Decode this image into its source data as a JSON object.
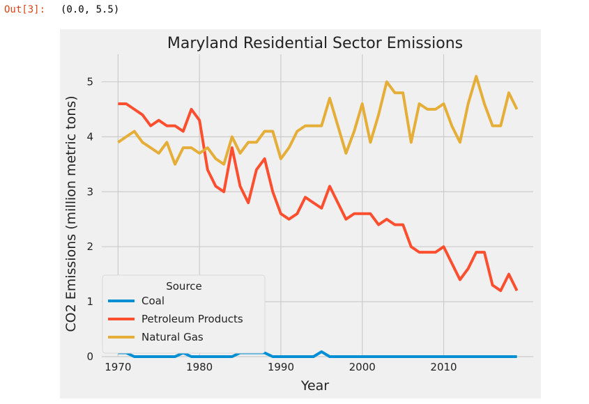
{
  "cell": {
    "prompt": "Out[3]:",
    "value": "(0.0, 5.5)"
  },
  "chart_data": {
    "type": "line",
    "title": "Maryland Residential Sector Emissions",
    "xlabel": "Year",
    "ylabel": "CO2 Emissions (million metric tons)",
    "xlim": [
      1968,
      2021
    ],
    "ylim": [
      0,
      5.5
    ],
    "xticks": [
      1970,
      1980,
      1990,
      2000,
      2010
    ],
    "yticks": [
      0,
      1,
      2,
      3,
      4,
      5
    ],
    "grid": true,
    "legend": {
      "title": "Source",
      "placement": "lower-left"
    },
    "x": [
      1970,
      1971,
      1972,
      1973,
      1974,
      1975,
      1976,
      1977,
      1978,
      1979,
      1980,
      1981,
      1982,
      1983,
      1984,
      1985,
      1986,
      1987,
      1988,
      1989,
      1990,
      1991,
      1992,
      1993,
      1994,
      1995,
      1996,
      1997,
      1998,
      1999,
      2000,
      2001,
      2002,
      2003,
      2004,
      2005,
      2006,
      2007,
      2008,
      2009,
      2010,
      2011,
      2012,
      2013,
      2014,
      2015,
      2016,
      2017,
      2018,
      2019
    ],
    "series": [
      {
        "name": "Coal",
        "color": "#008fd5",
        "values": [
          0.07,
          0.07,
          0,
          0,
          0,
          0,
          0,
          0,
          0.07,
          0,
          0,
          0,
          0,
          0,
          0,
          0.07,
          0.07,
          0.07,
          0.07,
          0,
          0,
          0,
          0,
          0,
          0,
          0.09,
          0,
          0,
          0,
          0,
          0,
          0,
          0,
          0,
          0,
          0,
          0,
          0,
          0,
          0,
          0,
          0,
          0,
          0,
          0,
          0,
          0,
          0,
          0,
          0
        ]
      },
      {
        "name": "Petroleum Products",
        "color": "#fc4f30",
        "values": [
          4.6,
          4.6,
          4.5,
          4.4,
          4.2,
          4.3,
          4.2,
          4.2,
          4.1,
          4.5,
          4.3,
          3.4,
          3.1,
          3.0,
          3.8,
          3.1,
          2.8,
          3.4,
          3.6,
          3.0,
          2.6,
          2.5,
          2.6,
          2.9,
          2.8,
          2.7,
          3.1,
          2.8,
          2.5,
          2.6,
          2.6,
          2.6,
          2.4,
          2.5,
          2.4,
          2.4,
          2.0,
          1.9,
          1.9,
          1.9,
          2.0,
          1.7,
          1.4,
          1.6,
          1.9,
          1.9,
          1.3,
          1.2,
          1.5,
          1.2
        ]
      },
      {
        "name": "Natural Gas",
        "color": "#e5ae38",
        "values": [
          3.9,
          4.0,
          4.1,
          3.9,
          3.8,
          3.7,
          3.9,
          3.5,
          3.8,
          3.8,
          3.7,
          3.8,
          3.6,
          3.5,
          4.0,
          3.7,
          3.9,
          3.9,
          4.1,
          4.1,
          3.6,
          3.8,
          4.1,
          4.2,
          4.2,
          4.2,
          4.7,
          4.2,
          3.7,
          4.1,
          4.6,
          3.9,
          4.4,
          5.0,
          4.8,
          4.8,
          3.9,
          4.6,
          4.5,
          4.5,
          4.6,
          4.2,
          3.9,
          4.6,
          5.1,
          4.6,
          4.2,
          4.2,
          4.8,
          4.5
        ]
      }
    ]
  }
}
